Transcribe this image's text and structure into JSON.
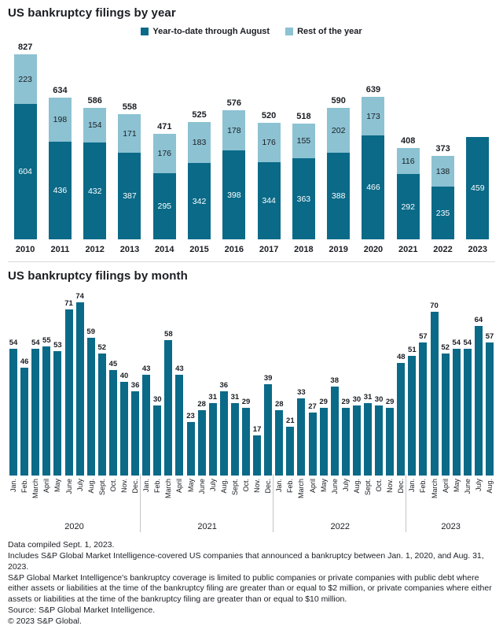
{
  "chart_data": [
    {
      "type": "bar",
      "stacked": true,
      "title": "US bankruptcy filings by year",
      "categories": [
        "2010",
        "2011",
        "2012",
        "2013",
        "2014",
        "2015",
        "2016",
        "2017",
        "2018",
        "2019",
        "2020",
        "2021",
        "2022",
        "2023"
      ],
      "series": [
        {
          "name": "Year-to-date through August",
          "color": "#0A6A88",
          "values": [
            604,
            436,
            432,
            387,
            295,
            342,
            398,
            344,
            363,
            388,
            466,
            292,
            235,
            459
          ]
        },
        {
          "name": "Rest of the year",
          "color": "#8CC2D2",
          "values": [
            223,
            198,
            154,
            171,
            176,
            183,
            178,
            176,
            155,
            202,
            173,
            116,
            138,
            null
          ]
        }
      ],
      "totals": [
        827,
        634,
        586,
        558,
        471,
        525,
        576,
        520,
        518,
        590,
        639,
        408,
        373,
        null
      ],
      "ylim": [
        0,
        850
      ],
      "grid": false,
      "legend_position": "top-center"
    },
    {
      "type": "bar",
      "title": "US bankruptcy filings by month",
      "bar_color": "#0A6A88",
      "ylim": [
        0,
        80
      ],
      "grid": false,
      "groups": [
        {
          "year": "2020",
          "months": [
            "Jan.",
            "Feb.",
            "March",
            "April",
            "May",
            "June",
            "July",
            "Aug.",
            "Sept.",
            "Oct.",
            "Nov.",
            "Dec."
          ],
          "values": [
            54,
            46,
            54,
            55,
            53,
            71,
            74,
            59,
            52,
            45,
            40,
            36
          ]
        },
        {
          "year": "2021",
          "months": [
            "Jan.",
            "Feb.",
            "March",
            "April",
            "May",
            "June",
            "July",
            "Aug.",
            "Sept.",
            "Oct.",
            "Nov.",
            "Dec."
          ],
          "values": [
            43,
            30,
            58,
            43,
            23,
            28,
            31,
            36,
            31,
            29,
            17,
            39
          ]
        },
        {
          "year": "2022",
          "months": [
            "Jan.",
            "Feb.",
            "March",
            "April",
            "May",
            "June",
            "July",
            "Aug.",
            "Sept.",
            "Oct.",
            "Nov.",
            "Dec."
          ],
          "values": [
            28,
            21,
            33,
            27,
            29,
            38,
            29,
            30,
            31,
            30,
            29,
            48
          ]
        },
        {
          "year": "2023",
          "months": [
            "Jan.",
            "Feb.",
            "March",
            "April",
            "May",
            "June",
            "July",
            "Aug."
          ],
          "values": [
            51,
            57,
            70,
            52,
            54,
            54,
            64,
            57
          ]
        }
      ]
    }
  ],
  "footer": {
    "compiled": "Data compiled Sept. 1, 2023.",
    "includes": "Includes S&P Global Market Intelligence-covered US companies that announced a bankruptcy between Jan. 1, 2020, and Aug. 31, 2023.",
    "coverage": "S&P Global Market Intelligence's bankruptcy coverage is limited to public companies or private companies with public debt where either assets or liabilities at the time of the bankruptcy filing are greater than or equal to $2 million, or private companies where either assets or liabilities at the time of the bankruptcy filing are greater than or equal to $10 million.",
    "source": "Source: S&P Global Market Intelligence.",
    "copyright": "© 2023 S&P Global."
  }
}
